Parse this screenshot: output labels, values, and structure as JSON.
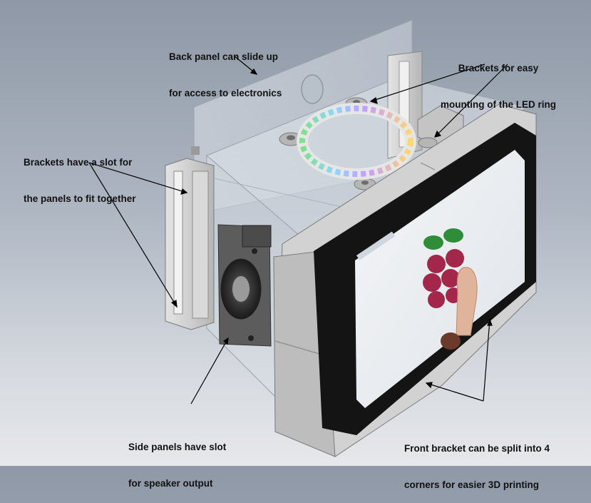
{
  "annotations": {
    "back_panel": {
      "line1": "Back panel can slide up",
      "line2": "for access to electronics"
    },
    "led_brackets": {
      "line1": "Brackets for easy",
      "line2": "mounting of the LED ring"
    },
    "panel_slot": {
      "line1": "Brackets have a slot for",
      "line2": "the panels to fit together"
    },
    "speaker_slot": {
      "line1": "Side panels have slot",
      "line2": "for speaker output"
    },
    "front_bracket": {
      "line1": "Front bracket can be split into 4",
      "line2": "corners for easier 3D printing"
    }
  },
  "colors": {
    "background_top": "#8e98a6",
    "background_bottom": "#e6e8eb",
    "bracket_grey": "#c9c9c9",
    "screen_bezel": "#1a1a1a",
    "arrow": "#000000"
  },
  "icons": [
    "raspberry-pi-logo",
    "led-ring",
    "speaker",
    "finger"
  ]
}
